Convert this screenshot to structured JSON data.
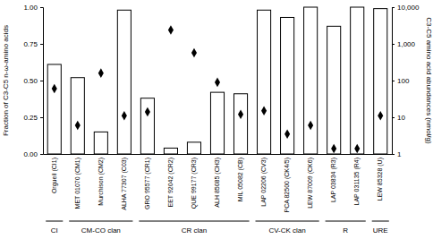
{
  "chart_data": {
    "type": "bar",
    "y_label": "Fraction of C3-C5 n-ω-amino acids",
    "y2_label": "C3-C5 amino acid abundances (nmol/g)",
    "categories": [
      "Orgueil (CI1)",
      "MET 01070 (CM1)",
      "Murchison (CM2)",
      "ALHA 77307 (C03)",
      "GRO 95577 (CR1)",
      "EET 92042 (CR2)",
      "QUE 99177 (CR3)",
      "ALH 85085 (CH3)",
      "MIL 05082 (CB)",
      "LAP 02206 (CV3)",
      "PCA 82500 (CK4/5)",
      "LEW 87009 (CK6)",
      "LAP 03834 (R3)",
      "LAP 031135 (R4)",
      "LEW 85328 (U)"
    ],
    "series": [
      {
        "type": "bar",
        "color": "#ffffff",
        "values": [
          0.61,
          0.52,
          0.15,
          0.98,
          0.38,
          0.04,
          0.08,
          0.42,
          0.41,
          0.98,
          0.93,
          1.0,
          0.87,
          1.0,
          0.99
        ]
      },
      {
        "type": "scatter",
        "axis": "y2",
        "marker": "diamond",
        "color": "#000000",
        "values": [
          60,
          6,
          160,
          11,
          14,
          2400,
          570,
          90,
          12,
          15,
          3.5,
          6,
          1.4,
          1.4,
          11
        ]
      }
    ],
    "groups": [
      {
        "label": "CI",
        "start": 0,
        "end": 0
      },
      {
        "label": "CM-CO clan",
        "start": 1,
        "end": 3
      },
      {
        "label": "CR clan",
        "start": 4,
        "end": 8
      },
      {
        "label": "CV-CK clan",
        "start": 9,
        "end": 11
      },
      {
        "label": "R",
        "start": 12,
        "end": 13
      },
      {
        "label": "URE",
        "start": 14,
        "end": 14
      }
    ],
    "ylim": [
      0,
      1
    ],
    "yticks": [
      {
        "value": 0,
        "label": "0.00"
      },
      0.25,
      {
        "value": 0.5,
        "label": "0.50"
      },
      0.75,
      {
        "value": 1,
        "label": "1.00"
      }
    ],
    "y2lim": [
      1,
      10000
    ],
    "y2ticks": [
      1,
      10,
      100,
      {
        "value": 1000,
        "label": "1,000"
      },
      {
        "value": 10000,
        "label": "10,000"
      }
    ],
    "log": "y2",
    "grid": false
  }
}
